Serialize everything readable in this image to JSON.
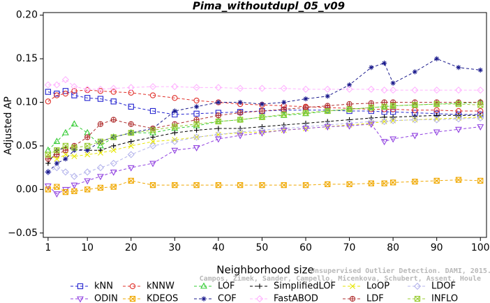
{
  "chart_data": {
    "type": "line",
    "title": "Pima_withoutdupl_05_v09",
    "x_label": "Neighborhood size",
    "y_label": "Adjusted AP",
    "annotations": [
      "Unsupervised Outlier Detection. DAMI, 2015.",
      "Campos, Zimek, Sander, Campello, Micenkova, Schubert, Assent, Houle"
    ],
    "xlim": [
      -0.1,
      101.4
    ],
    "ylim": [
      -0.055,
      0.203
    ],
    "xticks": [
      1,
      10,
      20,
      30,
      40,
      50,
      60,
      70,
      80,
      90,
      100
    ],
    "yticks": [
      {
        "value": -0.05,
        "label": "−0.05"
      },
      {
        "value": 0,
        "label": "0.00"
      },
      0.05,
      {
        "value": 0.1,
        "label": "0.10"
      },
      0.15,
      {
        "value": 0.2,
        "label": "0.20"
      }
    ],
    "x": [
      1,
      3,
      5,
      7,
      10,
      13,
      16,
      20,
      25,
      30,
      35,
      40,
      45,
      50,
      55,
      60,
      65,
      70,
      75,
      78,
      80,
      85,
      90,
      95,
      100
    ],
    "series": [
      {
        "name": "kNN",
        "color": "#2424d0",
        "marker": "square",
        "values": [
          0.112,
          0.11,
          0.113,
          0.108,
          0.105,
          0.104,
          0.101,
          0.095,
          0.09,
          0.086,
          0.087,
          0.088,
          0.089,
          0.09,
          0.091,
          0.091,
          0.091,
          0.09,
          0.09,
          0.089,
          0.089,
          0.088,
          0.087,
          0.086,
          0.086
        ]
      },
      {
        "name": "kNNW",
        "color": "#e0302a",
        "marker": "circle",
        "values": [
          0.101,
          0.108,
          0.11,
          0.113,
          0.114,
          0.113,
          0.112,
          0.111,
          0.108,
          0.105,
          0.102,
          0.1,
          0.098,
          0.097,
          0.096,
          0.095,
          0.094,
          0.093,
          0.092,
          0.092,
          0.092,
          0.091,
          0.091,
          0.09,
          0.09
        ]
      },
      {
        "name": "LOF",
        "color": "#33cc33",
        "marker": "triangle",
        "values": [
          0.045,
          0.055,
          0.065,
          0.075,
          0.065,
          0.05,
          0.06,
          0.065,
          0.065,
          0.07,
          0.073,
          0.078,
          0.08,
          0.083,
          0.085,
          0.087,
          0.09,
          0.092,
          0.094,
          0.095,
          0.096,
          0.097,
          0.098,
          0.099,
          0.1
        ]
      },
      {
        "name": "SimplifiedLOF",
        "color": "#000000",
        "marker": "plus",
        "values": [
          0.03,
          0.045,
          0.048,
          0.046,
          0.045,
          0.045,
          0.05,
          0.055,
          0.06,
          0.065,
          0.068,
          0.07,
          0.07,
          0.072,
          0.074,
          0.076,
          0.078,
          0.08,
          0.082,
          0.083,
          0.083,
          0.084,
          0.085,
          0.085,
          0.085
        ]
      },
      {
        "name": "LoOP",
        "color": "#e6e600",
        "marker": "x",
        "values": [
          0.04,
          0.035,
          0.04,
          0.038,
          0.04,
          0.042,
          0.045,
          0.05,
          0.055,
          0.057,
          0.06,
          0.063,
          0.065,
          0.066,
          0.068,
          0.07,
          0.072,
          0.074,
          0.076,
          0.078,
          0.079,
          0.08,
          0.081,
          0.082,
          0.083
        ]
      },
      {
        "name": "LDOF",
        "color": "#b4b4ec",
        "marker": "diamond",
        "values": [
          0.02,
          0.025,
          0.02,
          0.015,
          0.02,
          0.025,
          0.03,
          0.04,
          0.05,
          0.055,
          0.06,
          0.063,
          0.066,
          0.068,
          0.07,
          0.072,
          0.074,
          0.076,
          0.078,
          0.078,
          0.079,
          0.08,
          0.08,
          0.081,
          0.082
        ]
      },
      {
        "name": "ODIN",
        "color": "#9040e0",
        "marker": "triangle-down",
        "values": [
          0.004,
          -0.005,
          0.0,
          0.005,
          0.01,
          0.015,
          0.02,
          0.025,
          0.03,
          0.045,
          0.048,
          0.058,
          0.062,
          0.065,
          0.068,
          0.07,
          0.072,
          0.073,
          0.075,
          0.055,
          0.058,
          0.062,
          0.066,
          0.069,
          0.072
        ]
      },
      {
        "name": "KDEOS",
        "color": "#f0a800",
        "marker": "square-x",
        "values": [
          0.0,
          0.003,
          -0.003,
          -0.002,
          0.0,
          0.002,
          0.003,
          0.01,
          0.005,
          0.005,
          0.005,
          0.005,
          0.005,
          0.005,
          0.005,
          0.005,
          0.006,
          0.006,
          0.007,
          0.007,
          0.008,
          0.009,
          0.01,
          0.011,
          0.01
        ]
      },
      {
        "name": "COF",
        "color": "#1a1a8c",
        "marker": "star",
        "values": [
          0.02,
          0.03,
          0.035,
          0.045,
          0.045,
          0.055,
          0.06,
          0.065,
          0.07,
          0.09,
          0.095,
          0.1,
          0.1,
          0.098,
          0.1,
          0.104,
          0.107,
          0.12,
          0.14,
          0.145,
          0.122,
          0.135,
          0.15,
          0.14,
          0.137
        ]
      },
      {
        "name": "FastABOD",
        "color": "#ffb3ff",
        "marker": "diamond",
        "values": [
          0.12,
          0.12,
          0.126,
          0.118,
          0.115,
          0.115,
          0.116,
          0.117,
          0.118,
          0.118,
          0.117,
          0.117,
          0.116,
          0.116,
          0.116,
          0.115,
          0.115,
          0.115,
          0.115,
          0.114,
          0.114,
          0.114,
          0.114,
          0.114,
          0.114
        ]
      },
      {
        "name": "LDF",
        "color": "#b03030",
        "marker": "circle-plus",
        "values": [
          0.035,
          0.04,
          0.045,
          0.05,
          0.06,
          0.075,
          0.08,
          0.075,
          0.07,
          0.075,
          0.08,
          0.085,
          0.088,
          0.09,
          0.092,
          0.094,
          0.096,
          0.098,
          0.099,
          0.1,
          0.1,
          0.1,
          0.1,
          0.1,
          0.1
        ]
      },
      {
        "name": "INFLO",
        "color": "#99cc33",
        "marker": "square-x",
        "values": [
          0.04,
          0.045,
          0.05,
          0.048,
          0.05,
          0.055,
          0.06,
          0.065,
          0.068,
          0.072,
          0.075,
          0.078,
          0.08,
          0.083,
          0.086,
          0.088,
          0.09,
          0.092,
          0.094,
          0.095,
          0.096,
          0.097,
          0.098,
          0.098,
          0.097
        ]
      }
    ]
  }
}
